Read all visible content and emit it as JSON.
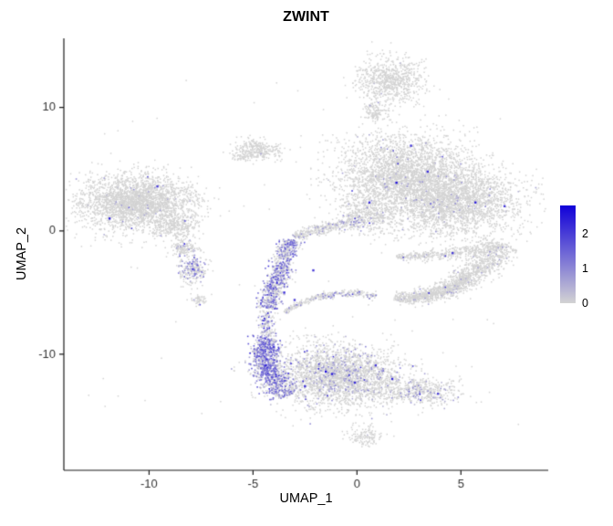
{
  "chart_data": {
    "type": "scatter",
    "title": "ZWINT",
    "xlabel": "UMAP_1",
    "ylabel": "UMAP_2",
    "xlim": [
      -14.1,
      9.2
    ],
    "ylim": [
      -19.4,
      15.6
    ],
    "x_ticks": [
      -10,
      -5,
      0,
      5
    ],
    "y_ticks": [
      -10,
      0,
      10
    ],
    "grid": false,
    "legend_position": "right",
    "expr_max": 2.8,
    "legend": {
      "ticks": [
        0,
        1,
        2
      ]
    },
    "colors": {
      "low": "#d3d3d3",
      "high": "#1000d8",
      "axis": "#1a1a1a",
      "tick_text": "#333333",
      "background": "#ffffff"
    },
    "seed": 1234,
    "point_size": 1.5,
    "clusters": [
      {
        "name": "left-main",
        "cx": -10.6,
        "cy": 2.3,
        "sx": 1.35,
        "sy": 1.1,
        "rot": 0.1,
        "n": 2600,
        "fr": 0.015,
        "lo": 0.2,
        "hi": 0.9
      },
      {
        "name": "left-main-lobe",
        "cx": -8.7,
        "cy": 0.4,
        "sx": 0.55,
        "sy": 0.6,
        "rot": 0,
        "n": 320,
        "fr": 0.03,
        "lo": 0.2,
        "hi": 0.9
      },
      {
        "name": "left-sub-a",
        "cx": -8.3,
        "cy": -1.5,
        "sx": 0.33,
        "sy": 0.33,
        "rot": 0,
        "n": 140,
        "fr": 0.05,
        "lo": 0.2,
        "hi": 1.0
      },
      {
        "name": "left-sub-b",
        "cx": -7.9,
        "cy": -3.2,
        "sx": 0.33,
        "sy": 0.5,
        "rot": 0,
        "n": 230,
        "fr": 0.3,
        "lo": 0.3,
        "hi": 1.3
      },
      {
        "name": "left-sub-c",
        "cx": -7.6,
        "cy": -5.6,
        "sx": 0.22,
        "sy": 0.24,
        "rot": 0,
        "n": 50,
        "fr": 0.06,
        "lo": 0.2,
        "hi": 1.0
      },
      {
        "name": "top-small",
        "cx": -4.7,
        "cy": 6.6,
        "sx": 0.55,
        "sy": 0.38,
        "rot": -0.3,
        "n": 270,
        "fr": 0.012,
        "lo": 0.2,
        "hi": 0.8
      },
      {
        "name": "top-small-tail",
        "cx": -5.5,
        "cy": 6.1,
        "sx": 0.28,
        "sy": 0.22,
        "rot": -0.4,
        "n": 70,
        "fr": 0.01,
        "lo": 0.2,
        "hi": 0.8
      },
      {
        "name": "top-right",
        "cx": 1.6,
        "cy": 12.2,
        "sx": 0.8,
        "sy": 0.9,
        "rot": 0,
        "n": 750,
        "fr": 0.008,
        "lo": 0.2,
        "hi": 0.8
      },
      {
        "name": "top-right-small",
        "cx": 0.9,
        "cy": 9.6,
        "sx": 0.3,
        "sy": 0.42,
        "rot": 0,
        "n": 130,
        "fr": 0.01,
        "lo": 0.2,
        "hi": 0.8
      },
      {
        "name": "right-main-a",
        "cx": 2.3,
        "cy": 4.6,
        "sx": 1.55,
        "sy": 1.6,
        "rot": 0.15,
        "n": 2900,
        "fr": 0.02,
        "lo": 0.2,
        "hi": 1.0
      },
      {
        "name": "right-main-b",
        "cx": 4.9,
        "cy": 2.3,
        "sx": 1.5,
        "sy": 1.35,
        "rot": 0.2,
        "n": 2300,
        "fr": 0.015,
        "lo": 0.2,
        "hi": 1.0
      },
      {
        "name": "right-main-neck",
        "cx": 0.6,
        "cy": 1.4,
        "sx": 0.65,
        "sy": 0.85,
        "rot": 0.5,
        "n": 420,
        "fr": 0.04,
        "lo": 0.2,
        "hi": 1.1
      },
      {
        "name": "bottom-main",
        "cx": -0.9,
        "cy": -11.8,
        "sx": 1.55,
        "sy": 1.25,
        "rot": -0.1,
        "n": 2700,
        "fr": 0.1,
        "lo": 0.2,
        "hi": 1.1
      },
      {
        "name": "bottom-right-ext",
        "cx": 3.0,
        "cy": -13.0,
        "sx": 1.0,
        "sy": 0.55,
        "rot": -0.15,
        "n": 480,
        "fr": 0.12,
        "lo": 0.2,
        "hi": 1.0
      },
      {
        "name": "bottom-far-small",
        "cx": 0.4,
        "cy": -16.6,
        "sx": 0.42,
        "sy": 0.36,
        "rot": 0,
        "n": 130,
        "fr": 0.01,
        "lo": 0.2,
        "hi": 0.6
      }
    ],
    "bands": [
      {
        "name": "crescent-lower",
        "p0": [
          1.8,
          -5.4
        ],
        "p1": [
          4.8,
          -5.9
        ],
        "p2": [
          7.0,
          -1.0
        ],
        "w0": 0.18,
        "w1": 0.5,
        "n": 1500,
        "fr": 0.04,
        "lo": 0.2,
        "hi": 0.9,
        "skew": 0.85
      },
      {
        "name": "crescent-upper",
        "p0": [
          1.9,
          -2.1
        ],
        "p1": [
          4.4,
          -2.0
        ],
        "p2": [
          6.9,
          -1.2
        ],
        "w0": 0.14,
        "w1": 0.3,
        "n": 380,
        "fr": 0.03,
        "lo": 0.2,
        "hi": 0.9,
        "skew": 1
      },
      {
        "name": "stream",
        "p0": [
          -3.2,
          -0.7
        ],
        "p1": [
          -3.7,
          -3.2
        ],
        "p2": [
          -4.3,
          -6.3
        ],
        "w0": 0.26,
        "w1": 0.3,
        "n": 850,
        "fr": 0.45,
        "lo": 0.3,
        "hi": 1.6,
        "skew": 1
      },
      {
        "name": "stream-diagonal",
        "p0": [
          -3.0,
          -0.5
        ],
        "p1": [
          -1.6,
          0.3
        ],
        "p2": [
          0.3,
          0.9
        ],
        "w0": 0.16,
        "w1": 0.3,
        "n": 380,
        "fr": 0.12,
        "lo": 0.2,
        "hi": 1.1,
        "skew": 1
      },
      {
        "name": "hook",
        "p0": [
          -3.5,
          -6.6
        ],
        "p1": [
          -1.4,
          -4.4
        ],
        "p2": [
          0.9,
          -5.3
        ],
        "w0": 0.1,
        "w1": 0.18,
        "n": 300,
        "fr": 0.15,
        "lo": 0.2,
        "hi": 1.2,
        "skew": 1
      },
      {
        "name": "bottom-left-arc",
        "p0": [
          -4.2,
          -8.7
        ],
        "p1": [
          -5.0,
          -10.9
        ],
        "p2": [
          -3.4,
          -13.4
        ],
        "w0": 0.34,
        "w1": 0.42,
        "n": 1000,
        "fr": 0.55,
        "lo": 0.3,
        "hi": 1.8,
        "skew": 1
      },
      {
        "name": "stream-connector",
        "p0": [
          -4.3,
          -6.5
        ],
        "p1": [
          -4.5,
          -7.6
        ],
        "p2": [
          -4.2,
          -8.6
        ],
        "w0": 0.18,
        "w1": 0.2,
        "n": 150,
        "fr": 0.4,
        "lo": 0.3,
        "hi": 1.4,
        "skew": 1
      }
    ],
    "sparse": {
      "n": 70,
      "x0": -13,
      "x1": 8,
      "y0": -16,
      "y1": 13.5
    },
    "hot_dots": [
      [
        -11.9,
        1.0,
        2.3
      ],
      [
        -9.6,
        3.6,
        2.0
      ],
      [
        -7.9,
        -3.1,
        1.8
      ],
      [
        1.9,
        3.9,
        2.6
      ],
      [
        3.4,
        4.8,
        2.2
      ],
      [
        5.7,
        2.3,
        2.4
      ],
      [
        7.1,
        2.0,
        2.0
      ],
      [
        2.6,
        6.9,
        2.1
      ],
      [
        0.6,
        2.3,
        2.2
      ],
      [
        4.6,
        -1.8,
        2.0
      ],
      [
        -2.1,
        -3.2,
        2.0
      ],
      [
        -3.5,
        -5.0,
        2.2
      ],
      [
        -3.0,
        -5.6,
        1.9
      ],
      [
        -1.5,
        -11.4,
        2.6
      ],
      [
        -1.2,
        -11.6,
        2.4
      ],
      [
        -0.1,
        -12.3,
        2.2
      ],
      [
        1.7,
        -12.0,
        2.3
      ],
      [
        0.9,
        -10.9,
        2.0
      ],
      [
        -2.5,
        -12.6,
        2.1
      ],
      [
        3.9,
        -13.2,
        1.9
      ],
      [
        -4.4,
        -10.9,
        2.2
      ],
      [
        -4.0,
        -9.4,
        2.0
      ]
    ]
  }
}
